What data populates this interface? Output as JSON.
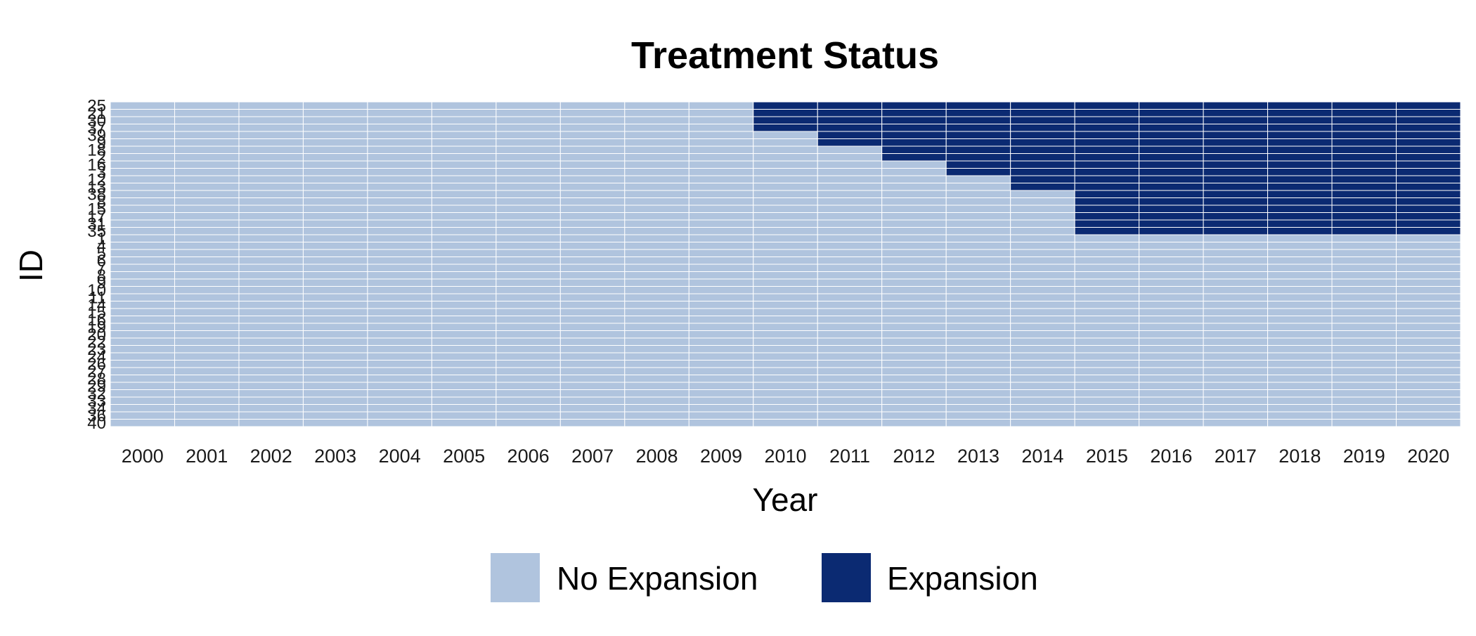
{
  "chart_data": {
    "type": "heatmap",
    "title": "Treatment Status",
    "xlabel": "Year",
    "ylabel": "ID",
    "x": [
      "2000",
      "2001",
      "2002",
      "2003",
      "2004",
      "2005",
      "2006",
      "2007",
      "2008",
      "2009",
      "2010",
      "2011",
      "2012",
      "2013",
      "2014",
      "2015",
      "2016",
      "2017",
      "2018",
      "2019",
      "2020"
    ],
    "y": [
      "25",
      "21",
      "30",
      "37",
      "39",
      "9",
      "18",
      "2",
      "16",
      "3",
      "12",
      "13",
      "38",
      "8",
      "15",
      "17",
      "31",
      "35",
      "1",
      "4",
      "5",
      "6",
      "7",
      "8",
      "9",
      "10",
      "11",
      "14",
      "15",
      "16",
      "19",
      "20",
      "22",
      "23",
      "24",
      "26",
      "27",
      "28",
      "29",
      "32",
      "33",
      "34",
      "36",
      "40"
    ],
    "treatment_start_year": [
      "2010",
      "2010",
      "2010",
      "2010",
      "2011",
      "2011",
      "2012",
      "2012",
      "2013",
      "2013",
      "2014",
      "2014",
      "2015",
      "2015",
      "2015",
      "2015",
      "2015",
      "2015",
      null,
      null,
      null,
      null,
      null,
      null,
      null,
      null,
      null,
      null,
      null,
      null,
      null,
      null,
      null,
      null,
      null,
      null,
      null,
      null,
      null,
      null,
      null,
      null,
      null,
      null
    ],
    "legend": [
      {
        "label": "No Expansion",
        "color": "#b0c4de"
      },
      {
        "label": "Expansion",
        "color": "#0b2a72"
      }
    ],
    "legend_position": "bottom"
  }
}
